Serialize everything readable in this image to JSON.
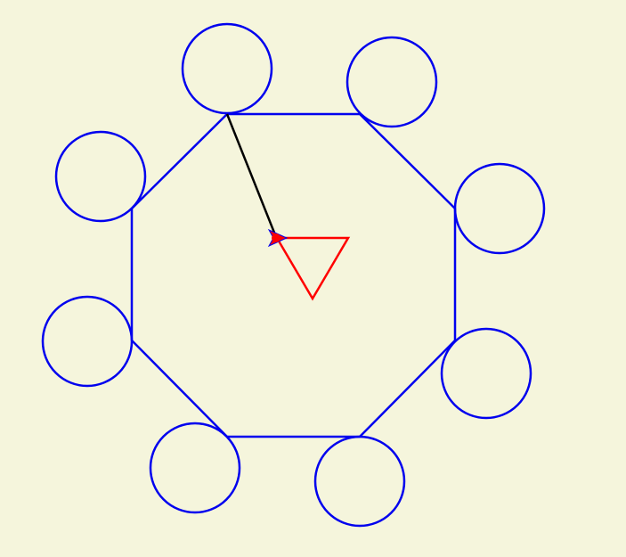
{
  "colors": {
    "background": "#f5f5dc",
    "octagon_stroke": "#0000ee",
    "circle_stroke": "#0000ee",
    "triangle_stroke": "#ff0000",
    "line_stroke": "#000000",
    "turtle_fill": "#ff0000",
    "turtle_outline": "#0000ee"
  },
  "shapes": {
    "octagon": {
      "sides": 8,
      "name": "octagon"
    },
    "circles": {
      "count": 8
    },
    "triangle": {
      "sides": 3
    },
    "turtle_icon": "turtle-arrow-icon"
  }
}
